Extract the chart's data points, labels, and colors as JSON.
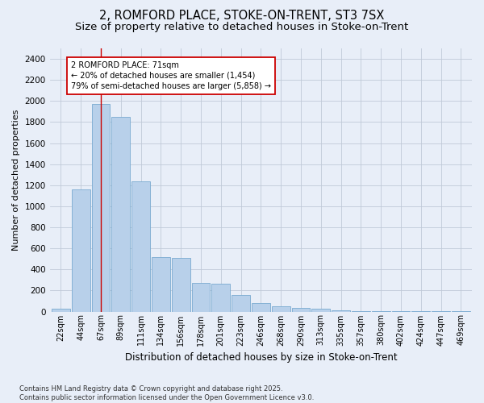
{
  "title_line1": "2, ROMFORD PLACE, STOKE-ON-TRENT, ST3 7SX",
  "title_line2": "Size of property relative to detached houses in Stoke-on-Trent",
  "xlabel": "Distribution of detached houses by size in Stoke-on-Trent",
  "ylabel": "Number of detached properties",
  "categories": [
    "22sqm",
    "44sqm",
    "67sqm",
    "89sqm",
    "111sqm",
    "134sqm",
    "156sqm",
    "178sqm",
    "201sqm",
    "223sqm",
    "246sqm",
    "268sqm",
    "290sqm",
    "313sqm",
    "335sqm",
    "357sqm",
    "380sqm",
    "402sqm",
    "424sqm",
    "447sqm",
    "469sqm"
  ],
  "values": [
    25,
    1160,
    1970,
    1850,
    1240,
    520,
    510,
    275,
    265,
    155,
    80,
    48,
    38,
    30,
    15,
    7,
    6,
    3,
    2,
    1,
    1
  ],
  "bar_color": "#b8d0ea",
  "bar_edge_color": "#7aaad0",
  "vline_x_index": 2,
  "vline_color": "#cc0000",
  "annotation_text": "2 ROMFORD PLACE: 71sqm\n← 20% of detached houses are smaller (1,454)\n79% of semi-detached houses are larger (5,858) →",
  "annotation_box_color": "#ffffff",
  "annotation_box_edge": "#cc0000",
  "ylim": [
    0,
    2500
  ],
  "yticks": [
    0,
    200,
    400,
    600,
    800,
    1000,
    1200,
    1400,
    1600,
    1800,
    2000,
    2200,
    2400
  ],
  "bg_color": "#e8eef8",
  "footer_text": "Contains HM Land Registry data © Crown copyright and database right 2025.\nContains public sector information licensed under the Open Government Licence v3.0.",
  "title_fontsize": 10.5,
  "subtitle_fontsize": 9.5
}
